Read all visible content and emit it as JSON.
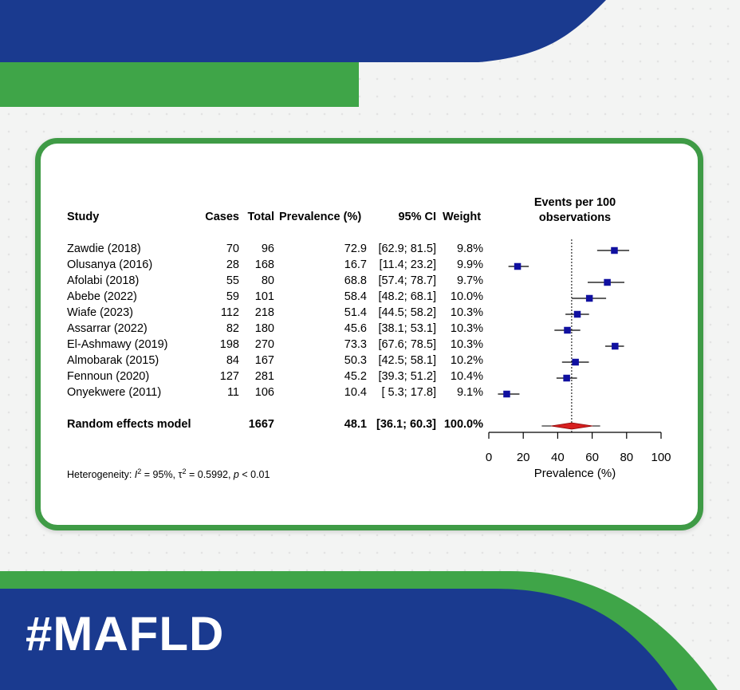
{
  "hashtag": "#MAFLD",
  "colors": {
    "navy": "#1a3a8f",
    "green": "#3fa548",
    "square": "#1010a0",
    "diamond": "#d62020"
  },
  "table": {
    "headers": {
      "study": "Study",
      "cases": "Cases",
      "total": "Total",
      "prevalence": "Prevalence (%)",
      "ci": "95% CI",
      "weight": "Weight"
    },
    "rows": [
      {
        "study": "Zawdie (2018)",
        "cases": "70",
        "total": "96",
        "prev": "72.9",
        "ci": "[62.9; 81.5]",
        "weight": "9.8%"
      },
      {
        "study": "Olusanya (2016)",
        "cases": "28",
        "total": "168",
        "prev": "16.7",
        "ci": "[11.4; 23.2]",
        "weight": "9.9%"
      },
      {
        "study": "Afolabi (2018)",
        "cases": "55",
        "total": "80",
        "prev": "68.8",
        "ci": "[57.4; 78.7]",
        "weight": "9.7%"
      },
      {
        "study": "Abebe (2022)",
        "cases": "59",
        "total": "101",
        "prev": "58.4",
        "ci": "[48.2; 68.1]",
        "weight": "10.0%"
      },
      {
        "study": "Wiafe (2023)",
        "cases": "112",
        "total": "218",
        "prev": "51.4",
        "ci": "[44.5; 58.2]",
        "weight": "10.3%"
      },
      {
        "study": "Assarrar (2022)",
        "cases": "82",
        "total": "180",
        "prev": "45.6",
        "ci": "[38.1; 53.1]",
        "weight": "10.3%"
      },
      {
        "study": "El-Ashmawy (2019)",
        "cases": "198",
        "total": "270",
        "prev": "73.3",
        "ci": "[67.6; 78.5]",
        "weight": "10.3%"
      },
      {
        "study": "Almobarak (2015)",
        "cases": "84",
        "total": "167",
        "prev": "50.3",
        "ci": "[42.5; 58.1]",
        "weight": "10.2%"
      },
      {
        "study": "Fennoun (2020)",
        "cases": "127",
        "total": "281",
        "prev": "45.2",
        "ci": "[39.3; 51.2]",
        "weight": "10.4%"
      },
      {
        "study": "Onyekwere (2011)",
        "cases": "11",
        "total": "106",
        "prev": "10.4",
        "ci": "[ 5.3; 17.8]",
        "weight": "9.1%"
      }
    ],
    "summary": {
      "study": "Random effects model",
      "total": "1667",
      "prev": "48.1",
      "ci": "[36.1; 60.3]",
      "weight": "100.0%"
    },
    "heterogeneity": {
      "prefix": "Heterogeneity: ",
      "i2": "= 95%, ",
      "tau2": "= 0.5992, ",
      "p": "< 0.01"
    }
  },
  "chart_data": {
    "type": "forest",
    "title": "Events per 100 observations",
    "xlabel": "Prevalence (%)",
    "xlim": [
      0,
      100
    ],
    "ticks": [
      0,
      20,
      40,
      60,
      80,
      100
    ],
    "reference_line": 48.1,
    "studies": [
      {
        "estimate": 72.9,
        "lower": 62.9,
        "upper": 81.5,
        "weight": 9.8
      },
      {
        "estimate": 16.7,
        "lower": 11.4,
        "upper": 23.2,
        "weight": 9.9
      },
      {
        "estimate": 68.8,
        "lower": 57.4,
        "upper": 78.7,
        "weight": 9.7
      },
      {
        "estimate": 58.4,
        "lower": 48.2,
        "upper": 68.1,
        "weight": 10.0
      },
      {
        "estimate": 51.4,
        "lower": 44.5,
        "upper": 58.2,
        "weight": 10.3
      },
      {
        "estimate": 45.6,
        "lower": 38.1,
        "upper": 53.1,
        "weight": 10.3
      },
      {
        "estimate": 73.3,
        "lower": 67.6,
        "upper": 78.5,
        "weight": 10.3
      },
      {
        "estimate": 50.3,
        "lower": 42.5,
        "upper": 58.1,
        "weight": 10.2
      },
      {
        "estimate": 45.2,
        "lower": 39.3,
        "upper": 51.2,
        "weight": 10.4
      },
      {
        "estimate": 10.4,
        "lower": 5.3,
        "upper": 17.8,
        "weight": 9.1
      }
    ],
    "summary": {
      "estimate": 48.1,
      "lower": 36.1,
      "upper": 60.3,
      "prediction_lower": 40.0,
      "prediction_upper": 60.0
    }
  }
}
